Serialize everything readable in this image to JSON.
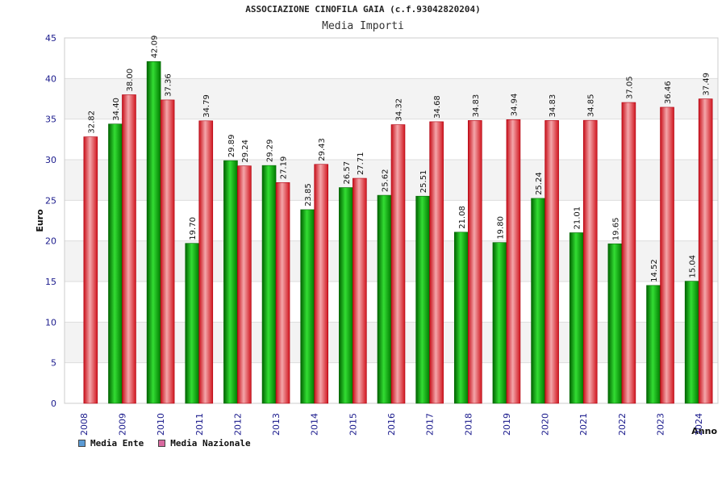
{
  "chart_data": {
    "type": "bar",
    "title": "ASSOCIAZIONE CINOFILA GAIA (c.f.93042820204)",
    "subtitle": "Media Importi",
    "xlabel": "Anno",
    "ylabel": "Euro",
    "ylim": [
      0,
      45
    ],
    "yticks": [
      0,
      5,
      10,
      15,
      20,
      25,
      30,
      35,
      40,
      45
    ],
    "categories": [
      "2008",
      "2009",
      "2010",
      "2011",
      "2012",
      "2013",
      "2014",
      "2015",
      "2016",
      "2017",
      "2018",
      "2019",
      "2020",
      "2021",
      "2022",
      "2023",
      "2024"
    ],
    "series": [
      {
        "name": "Media Ente",
        "color": "#00a000",
        "legend_color": "#5b9bd5",
        "values": [
          null,
          34.4,
          42.09,
          19.7,
          29.89,
          29.29,
          23.85,
          26.57,
          25.62,
          25.51,
          21.08,
          19.8,
          25.24,
          21.01,
          19.65,
          14.52,
          15.04
        ],
        "labels": [
          null,
          "34.40",
          "42.09",
          "19.70",
          "29.89",
          "29.29",
          "23.85",
          "26.57",
          "25.62",
          "25.51",
          "21.08",
          "19.80",
          "25.24",
          "21.01",
          "19.65",
          "14.52",
          "15.04"
        ]
      },
      {
        "name": "Media Nazionale",
        "color": "#e8202a",
        "legend_color": "#d96aa0",
        "values": [
          32.82,
          38.0,
          37.36,
          34.79,
          29.24,
          27.19,
          29.43,
          27.71,
          34.32,
          34.68,
          34.83,
          34.94,
          34.83,
          34.85,
          37.05,
          36.46,
          37.49
        ],
        "labels": [
          "32.82",
          "38.00",
          "37.36",
          "34.79",
          "29.24",
          "27.19",
          "29.43",
          "27.71",
          "34.32",
          "34.68",
          "34.83",
          "34.94",
          "34.83",
          "34.85",
          "37.05",
          "36.46",
          "37.49"
        ]
      }
    ],
    "grid": true,
    "legend_position": "bottom-left"
  }
}
